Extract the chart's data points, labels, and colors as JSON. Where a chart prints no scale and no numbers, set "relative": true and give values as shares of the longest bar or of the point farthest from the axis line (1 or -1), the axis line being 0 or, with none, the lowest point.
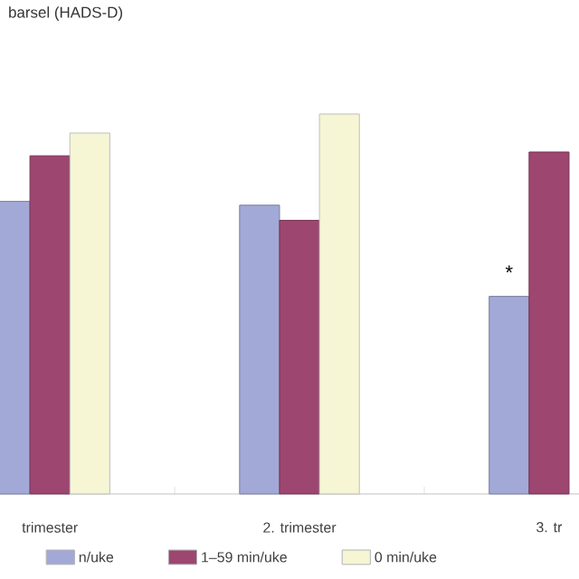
{
  "chart_data": {
    "type": "bar",
    "title": "barsel (HADS-D)",
    "relative": true,
    "categories": [
      "trimester",
      "2. trimester",
      "3. tr"
    ],
    "series": [
      {
        "name": "n/uke",
        "color": "#a3a9d6",
        "values": [
          0.77,
          0.76,
          0.52
        ]
      },
      {
        "name": "1–59 min/uke",
        "color": "#9c4670",
        "values": [
          0.89,
          0.72,
          0.9
        ]
      },
      {
        "name": "0 min/uke",
        "color": "#f6f5d4",
        "values": [
          0.95,
          1,
          null
        ]
      }
    ],
    "annotations": [
      "*"
    ],
    "legend": "bottom"
  }
}
